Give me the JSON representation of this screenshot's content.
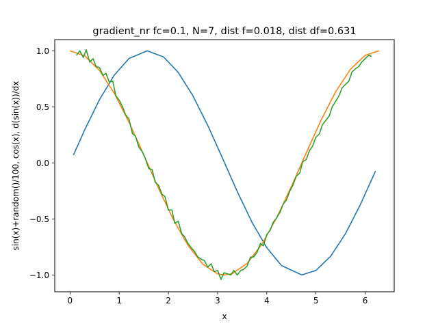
{
  "chart_data": {
    "type": "line",
    "title": "gradient_nr fc=0.1, N=7, dist f=0.018, dist df=0.631",
    "xlabel": "x",
    "ylabel": "sin(x)+random()/100, cos(x),  d(sin(x))/dx",
    "xlim": [
      -0.31,
      6.59
    ],
    "ylim": [
      -1.15,
      1.1
    ],
    "xticks": [
      0,
      1,
      2,
      3,
      4,
      5,
      6
    ],
    "xtick_labels": [
      "0",
      "1",
      "2",
      "3",
      "4",
      "5",
      "6"
    ],
    "yticks": [
      -1.0,
      -0.5,
      0.0,
      0.5,
      1.0
    ],
    "ytick_labels": [
      "−1.0",
      "−0.5",
      "0.0",
      "0.5",
      "1.0"
    ],
    "grid": false,
    "series": [
      {
        "color": "#1f77b4",
        "x": [
          0.07,
          0.3,
          0.6,
          0.9,
          1.2,
          1.5708,
          1.9,
          2.2,
          2.5,
          2.8,
          3.1,
          3.4,
          3.7,
          4.0,
          4.3,
          4.7124,
          5.0,
          5.3,
          5.6,
          5.9,
          6.21
        ],
        "y": [
          0.07,
          0.296,
          0.565,
          0.783,
          0.932,
          1.0,
          0.946,
          0.808,
          0.598,
          0.335,
          0.042,
          -0.256,
          -0.53,
          -0.757,
          -0.916,
          -1.0,
          -0.959,
          -0.832,
          -0.631,
          -0.374,
          -0.073
        ]
      },
      {
        "color": "#ff7f0e",
        "x": [
          0.0,
          0.3,
          0.6,
          0.9,
          1.2,
          1.5,
          1.8,
          2.1,
          2.4,
          2.7,
          3.0,
          3.1416,
          3.3,
          3.6,
          3.9,
          4.2,
          4.5,
          4.8,
          5.1,
          5.4,
          5.7,
          6.0,
          6.28
        ],
        "y": [
          1.0,
          0.955,
          0.825,
          0.622,
          0.362,
          0.071,
          -0.227,
          -0.505,
          -0.737,
          -0.904,
          -0.99,
          -1.0,
          -0.987,
          -0.897,
          -0.726,
          -0.49,
          -0.211,
          0.087,
          0.378,
          0.635,
          0.835,
          0.96,
          1.0
        ]
      },
      {
        "color": "#2ca02c",
        "x": [
          0.13,
          0.2,
          0.27,
          0.33,
          0.4,
          0.47,
          0.53,
          0.6,
          0.67,
          0.73,
          0.8,
          0.87,
          0.93,
          1.0,
          1.07,
          1.13,
          1.2,
          1.27,
          1.33,
          1.4,
          1.47,
          1.53,
          1.6,
          1.67,
          1.73,
          1.8,
          1.87,
          1.93,
          2.0,
          2.07,
          2.13,
          2.2,
          2.27,
          2.33,
          2.4,
          2.47,
          2.53,
          2.6,
          2.67,
          2.73,
          2.8,
          2.87,
          2.93,
          3.0,
          3.07,
          3.13,
          3.2,
          3.27,
          3.33,
          3.4,
          3.47,
          3.53,
          3.6,
          3.67,
          3.73,
          3.8,
          3.87,
          3.93,
          4.0,
          4.07,
          4.13,
          4.2,
          4.27,
          4.33,
          4.4,
          4.47,
          4.53,
          4.6,
          4.67,
          4.73,
          4.8,
          4.87,
          4.93,
          5.0,
          5.07,
          5.13,
          5.2,
          5.27,
          5.33,
          5.4,
          5.47,
          5.53,
          5.6,
          5.67,
          5.73,
          5.8,
          5.87,
          5.93,
          6.0,
          6.07,
          6.13
        ],
        "y": [
          0.96,
          1.0,
          0.94,
          1.01,
          0.9,
          0.93,
          0.86,
          0.85,
          0.78,
          0.8,
          0.72,
          0.73,
          0.6,
          0.56,
          0.5,
          0.43,
          0.39,
          0.26,
          0.24,
          0.14,
          0.1,
          0.04,
          -0.05,
          -0.06,
          -0.17,
          -0.2,
          -0.28,
          -0.3,
          -0.42,
          -0.42,
          -0.54,
          -0.52,
          -0.63,
          -0.66,
          -0.72,
          -0.76,
          -0.79,
          -0.84,
          -0.86,
          -0.87,
          -0.93,
          -0.9,
          -0.97,
          -0.96,
          -1.04,
          -0.98,
          -0.99,
          -1.0,
          -0.96,
          -1.0,
          -0.96,
          -0.95,
          -0.92,
          -0.84,
          -0.84,
          -0.8,
          -0.72,
          -0.74,
          -0.64,
          -0.6,
          -0.53,
          -0.49,
          -0.44,
          -0.37,
          -0.33,
          -0.25,
          -0.2,
          -0.12,
          -0.09,
          0.01,
          0.03,
          0.11,
          0.15,
          0.23,
          0.26,
          0.34,
          0.38,
          0.42,
          0.5,
          0.55,
          0.6,
          0.67,
          0.7,
          0.73,
          0.81,
          0.84,
          0.86,
          0.9,
          0.93,
          0.96,
          0.95
        ]
      }
    ]
  }
}
